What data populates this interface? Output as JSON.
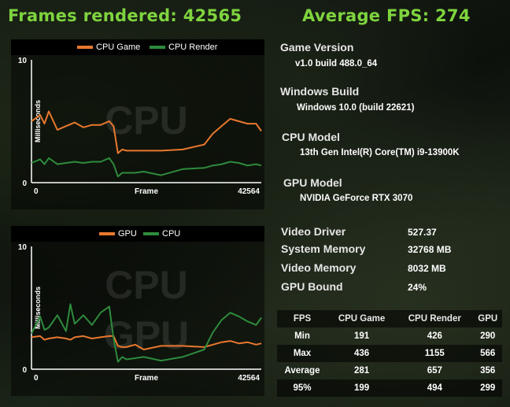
{
  "header": {
    "frames_label": "Frames rendered: 42565",
    "fps_label": "Average FPS: 274"
  },
  "colors": {
    "accent_green": "#7fd43e",
    "series_orange": "#e8782e",
    "series_green": "#2e8b3c"
  },
  "chart_data": [
    {
      "type": "line",
      "watermark": [
        "CPU"
      ],
      "legend_position": "top",
      "xlabel": "Frame",
      "ylabel": "Milliseconds",
      "x_ticks": [
        "0",
        "42564"
      ],
      "y_ticks": [
        "0",
        "10"
      ],
      "xlim": [
        0,
        42564
      ],
      "ylim": [
        0,
        10
      ],
      "x": [
        0,
        1600,
        2400,
        3200,
        4800,
        6400,
        8000,
        9600,
        11200,
        12800,
        14400,
        15200,
        16000,
        16800,
        17600,
        19200,
        20800,
        24000,
        28000,
        32000,
        33600,
        35200,
        36800,
        38400,
        40000,
        41600,
        42564
      ],
      "series": [
        {
          "name": "CPU Game",
          "values": [
            5.0,
            5.5,
            4.8,
            5.8,
            4.3,
            4.6,
            4.9,
            4.5,
            4.7,
            4.7,
            5.0,
            4.6,
            2.4,
            2.7,
            2.6,
            2.6,
            2.6,
            2.6,
            2.7,
            3.1,
            4.0,
            4.6,
            5.2,
            5.0,
            4.8,
            4.8,
            4.2
          ]
        },
        {
          "name": "CPU Render",
          "values": [
            1.6,
            1.9,
            1.5,
            2.0,
            1.5,
            1.6,
            1.7,
            1.6,
            1.7,
            1.7,
            2.0,
            1.5,
            0.5,
            0.8,
            0.8,
            0.8,
            0.9,
            0.6,
            1.1,
            1.2,
            1.4,
            1.5,
            1.7,
            1.6,
            1.4,
            1.5,
            1.4
          ]
        }
      ]
    },
    {
      "type": "line",
      "watermark": [
        "CPU",
        "GPU"
      ],
      "legend_position": "top",
      "xlabel": "Frame",
      "ylabel": "Milliseconds",
      "x_ticks": [
        "0",
        "42564"
      ],
      "y_ticks": [
        "0",
        "10"
      ],
      "xlim": [
        0,
        42564
      ],
      "ylim": [
        0,
        10
      ],
      "x": [
        0,
        1600,
        2400,
        3200,
        4800,
        6400,
        7200,
        8000,
        9600,
        11200,
        12800,
        14400,
        15200,
        16000,
        16800,
        17600,
        19200,
        20800,
        24000,
        28000,
        32000,
        33600,
        35200,
        36800,
        38400,
        40000,
        41600,
        42564
      ],
      "series": [
        {
          "name": "GPU",
          "values": [
            2.6,
            2.7,
            2.4,
            2.5,
            2.6,
            2.5,
            2.4,
            2.6,
            2.7,
            2.5,
            2.6,
            2.7,
            2.7,
            1.9,
            1.8,
            1.8,
            2.0,
            1.6,
            1.9,
            1.9,
            1.8,
            2.0,
            2.2,
            2.3,
            2.1,
            2.2,
            2.0,
            2.1
          ]
        },
        {
          "name": "CPU",
          "values": [
            2.9,
            4.3,
            3.2,
            3.4,
            4.4,
            3.1,
            5.3,
            3.7,
            4.4,
            3.6,
            4.6,
            5.1,
            2.5,
            0.6,
            1.0,
            0.8,
            0.9,
            1.0,
            0.7,
            1.0,
            1.6,
            3.0,
            4.0,
            4.6,
            4.3,
            3.9,
            3.6,
            4.2
          ]
        }
      ]
    }
  ],
  "info": {
    "game_version": {
      "label": "Game Version",
      "value": "v1.0 build 488.0_64"
    },
    "windows_build": {
      "label": "Windows Build",
      "value": "Windows 10.0 (build 22621)"
    },
    "cpu_model": {
      "label": "CPU Model",
      "value": "13th Gen Intel(R) Core(TM) i9-13900K"
    },
    "gpu_model": {
      "label": "GPU Model",
      "value": "NVIDIA GeForce RTX 3070"
    }
  },
  "stats": {
    "video_driver": {
      "label": "Video Driver",
      "value": "527.37"
    },
    "system_memory": {
      "label": "System Memory",
      "value": "32768 MB"
    },
    "video_memory": {
      "label": "Video Memory",
      "value": "8032 MB"
    },
    "gpu_bound": {
      "label": "GPU Bound",
      "value": "24%"
    }
  },
  "fps_table": {
    "headers": [
      "FPS",
      "CPU Game",
      "CPU Render",
      "GPU"
    ],
    "rows": [
      {
        "label": "Min",
        "values": [
          "191",
          "426",
          "290"
        ]
      },
      {
        "label": "Max",
        "values": [
          "436",
          "1155",
          "566"
        ]
      },
      {
        "label": "Average",
        "values": [
          "281",
          "657",
          "356"
        ]
      },
      {
        "label": "95%",
        "values": [
          "199",
          "494",
          "299"
        ]
      }
    ]
  }
}
